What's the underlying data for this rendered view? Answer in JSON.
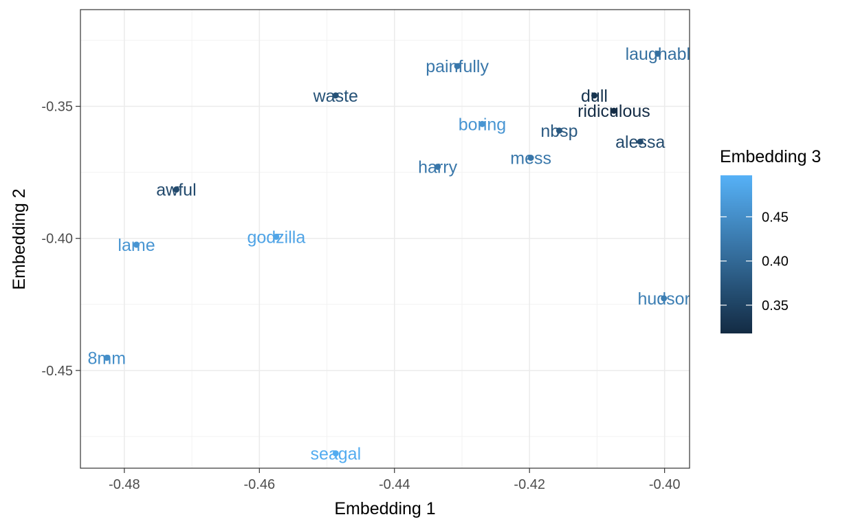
{
  "chart_data": {
    "type": "scatter",
    "xlabel": "Embedding 1",
    "ylabel": "Embedding 2",
    "xlim": [
      -0.4865,
      -0.3963
    ],
    "ylim": [
      -0.487,
      -0.3134
    ],
    "x_ticks": [
      -0.48,
      -0.46,
      -0.44,
      -0.42,
      -0.4
    ],
    "x_tick_labels": [
      "-0.48",
      "-0.46",
      "-0.44",
      "-0.42",
      "-0.40"
    ],
    "y_ticks": [
      -0.35,
      -0.4,
      -0.45
    ],
    "y_tick_labels": [
      "-0.35",
      "-0.40",
      "-0.45"
    ],
    "grid": true,
    "color_by": "Embedding 3",
    "points": [
      {
        "label": "laughabl",
        "x": -0.401,
        "y": -0.3301,
        "z": 0.41
      },
      {
        "label": "painfully",
        "x": -0.4307,
        "y": -0.3348,
        "z": 0.42
      },
      {
        "label": "waste",
        "x": -0.4487,
        "y": -0.3459,
        "z": 0.37
      },
      {
        "label": "dull",
        "x": -0.4104,
        "y": -0.3459,
        "z": 0.33
      },
      {
        "label": "ridiculous",
        "x": -0.4075,
        "y": -0.3517,
        "z": 0.32
      },
      {
        "label": "boring",
        "x": -0.427,
        "y": -0.3567,
        "z": 0.46
      },
      {
        "label": "nbsp",
        "x": -0.4156,
        "y": -0.3592,
        "z": 0.38
      },
      {
        "label": "alessa",
        "x": -0.4036,
        "y": -0.3634,
        "z": 0.36
      },
      {
        "label": "mess",
        "x": -0.4198,
        "y": -0.3695,
        "z": 0.42
      },
      {
        "label": "harry",
        "x": -0.4336,
        "y": -0.3729,
        "z": 0.42
      },
      {
        "label": "awful",
        "x": -0.4723,
        "y": -0.3815,
        "z": 0.36
      },
      {
        "label": "godzilla",
        "x": -0.4575,
        "y": -0.3994,
        "z": 0.48
      },
      {
        "label": "lame",
        "x": -0.4782,
        "y": -0.4024,
        "z": 0.46
      },
      {
        "label": "hudsor",
        "x": -0.4001,
        "y": -0.4227,
        "z": 0.43
      },
      {
        "label": "8mm",
        "x": -0.4826,
        "y": -0.4452,
        "z": 0.45
      },
      {
        "label": "seagal",
        "x": -0.4487,
        "y": -0.4814,
        "z": 0.49
      }
    ],
    "legend": {
      "title": "Embedding 3",
      "position": "right",
      "min": 0.318,
      "max": 0.497,
      "low_color": "#132B43",
      "high_color": "#56B1F7",
      "ticks": [
        0.35,
        0.4,
        0.45
      ],
      "tick_labels": [
        "0.35",
        "0.40",
        "0.45"
      ]
    }
  }
}
